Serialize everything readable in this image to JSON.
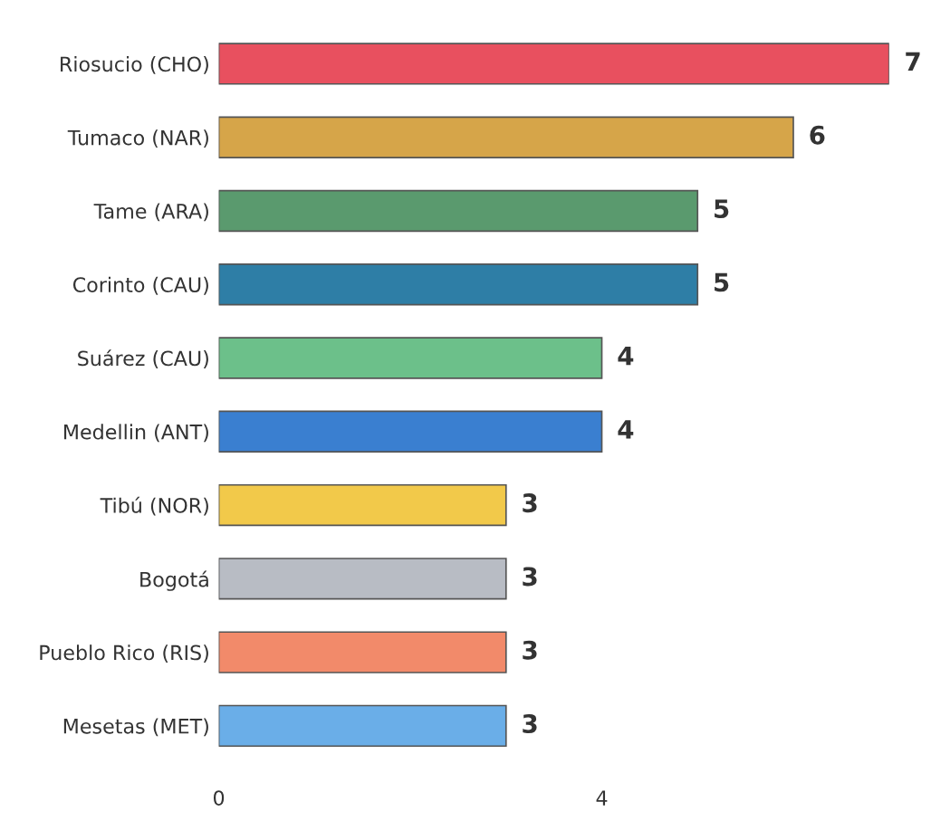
{
  "chart_data": {
    "type": "bar",
    "orientation": "horizontal",
    "categories": [
      "Riosucio (CHO)",
      "Tumaco (NAR)",
      "Tame (ARA)",
      "Corinto (CAU)",
      "Suárez (CAU)",
      "Medellin (ANT)",
      "Tibú (NOR)",
      "Bogotá",
      "Pueblo Rico (RIS)",
      "Mesetas (MET)"
    ],
    "values": [
      7,
      6,
      5,
      5,
      4,
      4,
      3,
      3,
      3,
      3
    ],
    "colors": [
      "#e8505f",
      "#d6a549",
      "#5a9a6e",
      "#2e7ea6",
      "#6cc08a",
      "#3a7fd0",
      "#f2c94a",
      "#b8bcc4",
      "#f28a6a",
      "#6aaee8"
    ],
    "xlim": [
      0,
      7
    ],
    "xticks": [
      0,
      4
    ],
    "data_labels": true,
    "grid": false,
    "legend": false
  }
}
